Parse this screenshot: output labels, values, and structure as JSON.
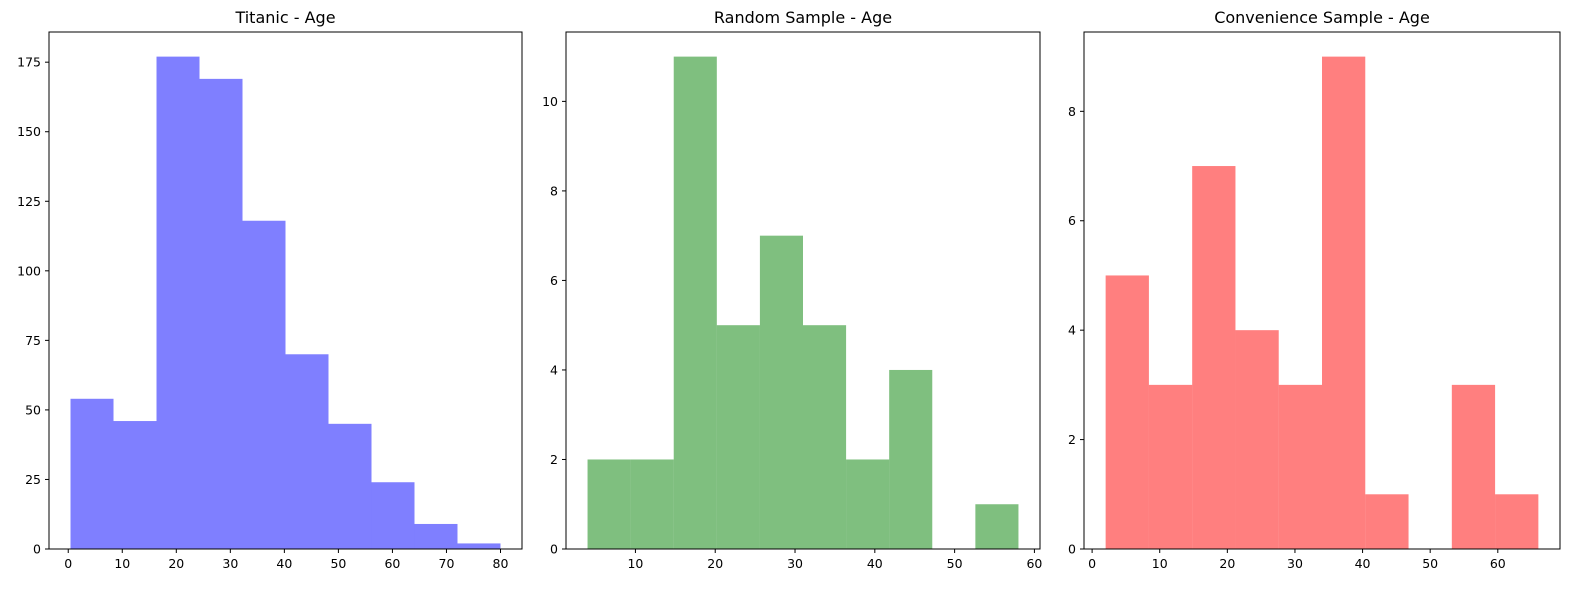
{
  "chart_data": [
    {
      "type": "bar",
      "title": "Titanic - Age",
      "color": "#0000ff",
      "alpha": 0.5,
      "bin_edges": [
        0.42,
        8.378,
        16.336,
        24.294,
        32.252,
        40.21,
        48.168,
        56.126,
        64.084,
        72.042,
        80.0
      ],
      "values": [
        54,
        46,
        177,
        169,
        118,
        70,
        45,
        24,
        9,
        2
      ],
      "xlim": [
        -3.56,
        83.98
      ],
      "ylim": [
        0,
        185.85
      ],
      "xticks": [
        0,
        10,
        20,
        30,
        40,
        50,
        60,
        70,
        80
      ],
      "yticks": [
        0,
        25,
        50,
        75,
        100,
        125,
        150,
        175
      ]
    },
    {
      "type": "bar",
      "title": "Random Sample - Age",
      "color": "#008000",
      "alpha": 0.5,
      "bin_edges": [
        4.0,
        9.4,
        14.8,
        20.2,
        25.6,
        31.0,
        36.4,
        41.8,
        47.2,
        52.6,
        58.0
      ],
      "values": [
        2,
        2,
        11,
        5,
        7,
        5,
        2,
        4,
        0,
        1
      ],
      "xlim": [
        1.3,
        60.7
      ],
      "ylim": [
        0,
        11.55
      ],
      "xticks": [
        10,
        20,
        30,
        40,
        50,
        60
      ],
      "yticks": [
        0,
        2,
        4,
        6,
        8,
        10
      ]
    },
    {
      "type": "bar",
      "title": "Convenience Sample - Age",
      "color": "#ff0000",
      "alpha": 0.5,
      "bin_edges": [
        2.0,
        8.4,
        14.8,
        21.2,
        27.6,
        34.0,
        40.4,
        46.8,
        53.2,
        59.6,
        66.0
      ],
      "values": [
        5,
        3,
        7,
        4,
        3,
        9,
        1,
        0,
        3,
        1
      ],
      "xlim": [
        -1.2,
        69.2
      ],
      "ylim": [
        0,
        9.45
      ],
      "xticks": [
        0,
        10,
        20,
        30,
        40,
        50,
        60
      ],
      "yticks": [
        0,
        2,
        4,
        6,
        8
      ]
    }
  ]
}
